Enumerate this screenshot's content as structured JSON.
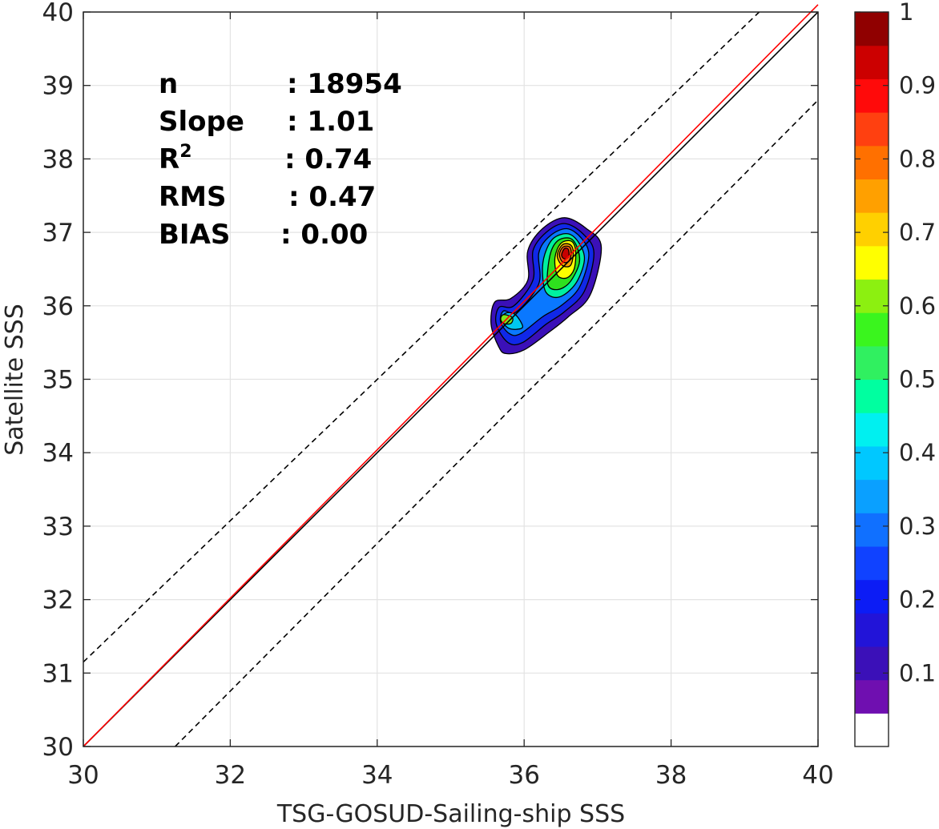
{
  "chart_data": {
    "type": "contour",
    "xlabel": "TSG-GOSUD-Sailing-ship SSS",
    "ylabel": "Satellite SSS",
    "xlim": [
      30,
      40
    ],
    "ylim": [
      30,
      40
    ],
    "xticks": [
      "30",
      "32",
      "34",
      "36",
      "38",
      "40"
    ],
    "yticks": [
      "30",
      "31",
      "32",
      "33",
      "34",
      "35",
      "36",
      "37",
      "38",
      "39",
      "40"
    ],
    "grid": true,
    "stats": [
      {
        "label": "n",
        "value": ": 18954"
      },
      {
        "label": "Slope",
        "value": ": 1.01"
      },
      {
        "label": "R",
        "sup": "2",
        "value": ": 0.74"
      },
      {
        "label": "RMS",
        "value": ": 0.47"
      },
      {
        "label": "BIAS",
        "value": ": 0.00"
      }
    ],
    "lines": [
      {
        "kind": "identity",
        "style": "solid",
        "color": "#000000",
        "x": [
          30,
          40
        ],
        "y": [
          30,
          40
        ]
      },
      {
        "kind": "regression",
        "style": "solid",
        "color": "#ff0000",
        "x": [
          30,
          40
        ],
        "y": [
          30,
          40.1
        ]
      },
      {
        "kind": "upper-bound",
        "style": "dashed",
        "color": "#000000",
        "x": [
          30,
          39.2
        ],
        "y": [
          31.15,
          40
        ]
      },
      {
        "kind": "lower-bound",
        "style": "dashed",
        "color": "#000000",
        "x": [
          31.25,
          40
        ],
        "y": [
          30,
          38.8
        ]
      }
    ],
    "contour_levels": [
      {
        "level": 0.05,
        "color": "#3b10b8",
        "points": [
          [
            35.55,
            35.75
          ],
          [
            35.6,
            36.05
          ],
          [
            35.82,
            36.1
          ],
          [
            36.05,
            36.35
          ],
          [
            36.05,
            36.75
          ],
          [
            36.25,
            37.05
          ],
          [
            36.55,
            37.2
          ],
          [
            36.85,
            37.05
          ],
          [
            37.05,
            36.8
          ],
          [
            36.9,
            36.15
          ],
          [
            36.6,
            35.85
          ],
          [
            36.35,
            35.65
          ],
          [
            36.0,
            35.4
          ],
          [
            35.75,
            35.35
          ],
          [
            35.65,
            35.45
          ]
        ]
      },
      {
        "level": 0.15,
        "color": "#1028e8",
        "points": [
          [
            35.62,
            35.75
          ],
          [
            35.66,
            35.98
          ],
          [
            35.86,
            36.0
          ],
          [
            36.12,
            36.35
          ],
          [
            36.12,
            36.75
          ],
          [
            36.3,
            37.0
          ],
          [
            36.55,
            37.12
          ],
          [
            36.8,
            36.98
          ],
          [
            36.95,
            36.72
          ],
          [
            36.82,
            36.2
          ],
          [
            36.55,
            35.92
          ],
          [
            36.3,
            35.75
          ],
          [
            35.98,
            35.5
          ],
          [
            35.78,
            35.5
          ]
        ]
      },
      {
        "level": 0.25,
        "color": "#0a78ff",
        "points": [
          [
            35.68,
            35.78
          ],
          [
            35.72,
            35.93
          ],
          [
            35.9,
            35.92
          ],
          [
            36.2,
            36.3
          ],
          [
            36.2,
            36.72
          ],
          [
            36.35,
            36.95
          ],
          [
            36.58,
            37.05
          ],
          [
            36.78,
            36.92
          ],
          [
            36.88,
            36.68
          ],
          [
            36.75,
            36.25
          ],
          [
            36.5,
            36.0
          ],
          [
            36.25,
            35.85
          ],
          [
            35.95,
            35.62
          ],
          [
            35.8,
            35.62
          ]
        ]
      },
      {
        "level": 0.35,
        "color": "#00c8f0",
        "points": [
          [
            35.7,
            35.8
          ],
          [
            35.75,
            35.9
          ],
          [
            35.88,
            35.88
          ],
          [
            35.98,
            35.72
          ],
          [
            35.9,
            35.68
          ],
          [
            35.78,
            35.7
          ]
        ]
      },
      {
        "level": 0.4,
        "color": "#00f0a0",
        "points": [
          [
            36.28,
            36.7
          ],
          [
            36.4,
            36.92
          ],
          [
            36.6,
            36.98
          ],
          [
            36.75,
            36.85
          ],
          [
            36.82,
            36.62
          ],
          [
            36.7,
            36.3
          ],
          [
            36.48,
            36.12
          ],
          [
            36.3,
            36.18
          ],
          [
            36.25,
            36.45
          ]
        ]
      },
      {
        "level": 0.55,
        "color": "#2ee01e",
        "points": [
          [
            36.35,
            36.68
          ],
          [
            36.45,
            36.88
          ],
          [
            36.62,
            36.92
          ],
          [
            36.72,
            36.8
          ],
          [
            36.75,
            36.58
          ],
          [
            36.62,
            36.32
          ],
          [
            36.45,
            36.22
          ],
          [
            36.32,
            36.3
          ]
        ]
      },
      {
        "level": 0.6,
        "color": "#7de81a",
        "points": [
          [
            35.68,
            35.82
          ],
          [
            35.72,
            35.88
          ],
          [
            35.84,
            35.84
          ],
          [
            35.82,
            35.76
          ],
          [
            35.72,
            35.76
          ]
        ]
      },
      {
        "level": 0.65,
        "color": "#ffff00",
        "points": [
          [
            36.42,
            36.66
          ],
          [
            36.5,
            36.85
          ],
          [
            36.64,
            36.88
          ],
          [
            36.7,
            36.75
          ],
          [
            36.68,
            36.5
          ],
          [
            36.58,
            36.38
          ],
          [
            36.45,
            36.42
          ]
        ]
      },
      {
        "level": 0.75,
        "color": "#ffa500",
        "points": [
          [
            36.45,
            36.68
          ],
          [
            36.52,
            36.83
          ],
          [
            36.63,
            36.83
          ],
          [
            36.67,
            36.72
          ],
          [
            36.63,
            36.55
          ],
          [
            36.52,
            36.55
          ]
        ]
      },
      {
        "level": 0.85,
        "color": "#ff5a10",
        "points": [
          [
            36.48,
            36.7
          ],
          [
            36.53,
            36.8
          ],
          [
            36.62,
            36.8
          ],
          [
            36.64,
            36.7
          ],
          [
            36.6,
            36.6
          ],
          [
            36.52,
            36.6
          ]
        ]
      },
      {
        "level": 0.95,
        "color": "#c80000",
        "points": [
          [
            36.51,
            36.7
          ],
          [
            36.55,
            36.78
          ],
          [
            36.6,
            36.77
          ],
          [
            36.61,
            36.68
          ],
          [
            36.57,
            36.64
          ],
          [
            36.53,
            36.65
          ]
        ]
      }
    ],
    "colorbar": {
      "min": 0,
      "max": 1,
      "tick_labels": [
        "0.1",
        "0.2",
        "0.3",
        "0.4",
        "0.5",
        "0.6",
        "0.7",
        "0.8",
        "0.9",
        "1"
      ],
      "tick_values": [
        0.1,
        0.2,
        0.3,
        0.4,
        0.5,
        0.6,
        0.7,
        0.8,
        0.9,
        1.0
      ],
      "colors": [
        "#ffffff",
        "#6f0fb0",
        "#3b10b8",
        "#2214d8",
        "#0c1cf5",
        "#1042ff",
        "#1070ff",
        "#0aa0ff",
        "#00c8ff",
        "#00f0f0",
        "#00ffa0",
        "#30f060",
        "#3af51e",
        "#8cf010",
        "#ffff00",
        "#ffd000",
        "#ffa000",
        "#ff7000",
        "#ff4010",
        "#ff0a0a",
        "#cc0000",
        "#900000"
      ]
    }
  }
}
